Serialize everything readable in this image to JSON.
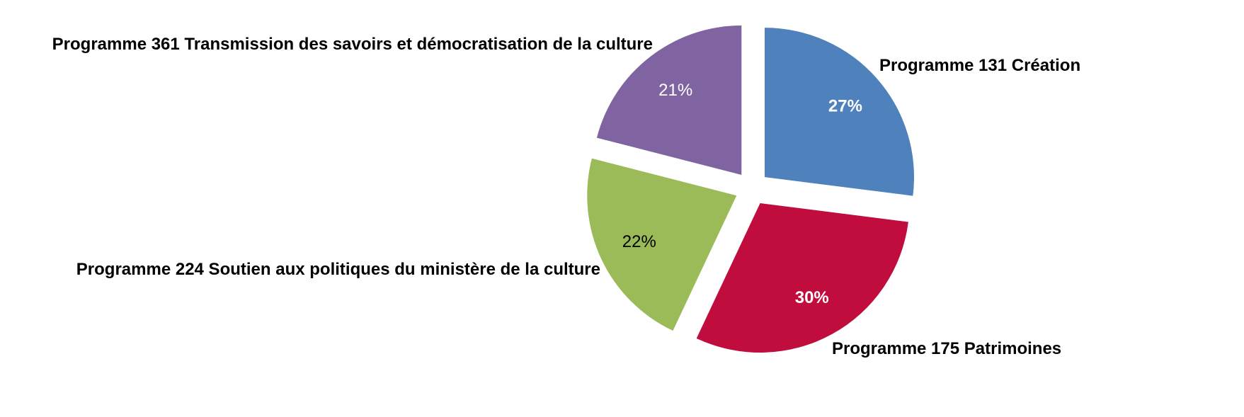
{
  "chart_data": {
    "type": "pie",
    "title": "",
    "start_angle_deg": 0,
    "direction": "clockwise",
    "exploded": true,
    "slices": [
      {
        "label": "Programme 131 Création",
        "value": 27,
        "display": "27%",
        "color": "#4F81BD",
        "label_color": "#FFFFFF",
        "label_bold": true
      },
      {
        "label": "Programme 175 Patrimoines",
        "value": 30,
        "display": "30%",
        "color": "#C00D3E",
        "label_color": "#FFFFFF",
        "label_bold": true
      },
      {
        "label": "Programme 224 Soutien aux politiques du ministère de la culture",
        "value": 22,
        "display": "22%",
        "color": "#9BBB59",
        "label_color": "#000000",
        "label_bold": false
      },
      {
        "label": "Programme 361 Transmission des savoirs et démocratisation de la culture",
        "value": 21,
        "display": "21%",
        "color": "#8064A2",
        "label_color": "#FFFFFF",
        "label_bold": false
      }
    ]
  }
}
